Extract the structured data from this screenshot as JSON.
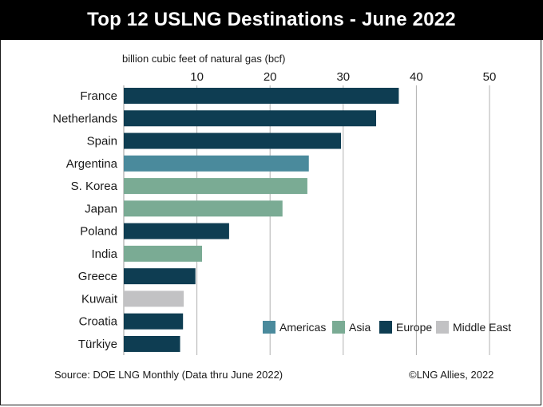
{
  "chart_data": {
    "type": "bar",
    "orientation": "horizontal",
    "title": "Top 12 USLNG Destinations - June 2022",
    "xlabel": "billion cubic feet of natural gas (bcf)",
    "ylabel": "",
    "xlim": [
      0,
      50
    ],
    "ticks": [
      10,
      20,
      30,
      40,
      50
    ],
    "grid": true,
    "categories": [
      "France",
      "Netherlands",
      "Spain",
      "Argentina",
      "S. Korea",
      "Japan",
      "Poland",
      "India",
      "Greece",
      "Kuwait",
      "Croatia",
      "Türkiye"
    ],
    "values": [
      37.6,
      34.5,
      29.7,
      25.3,
      25.1,
      21.7,
      14.4,
      10.7,
      9.8,
      8.2,
      8.1,
      7.7
    ],
    "regions": [
      "Europe",
      "Europe",
      "Europe",
      "Americas",
      "Asia",
      "Asia",
      "Europe",
      "Asia",
      "Europe",
      "Middle East",
      "Europe",
      "Europe"
    ],
    "legend": [
      {
        "name": "Americas",
        "color": "#4a8a9c"
      },
      {
        "name": "Asia",
        "color": "#7aab94"
      },
      {
        "name": "Europe",
        "color": "#0e3d52"
      },
      {
        "name": "Middle East",
        "color": "#c2c2c4"
      }
    ],
    "legend_position": "bottom-right"
  },
  "footer": {
    "source": "Source: DOE LNG Monthly (Data thru June 2022)",
    "credit": "©LNG Allies, 2022"
  }
}
